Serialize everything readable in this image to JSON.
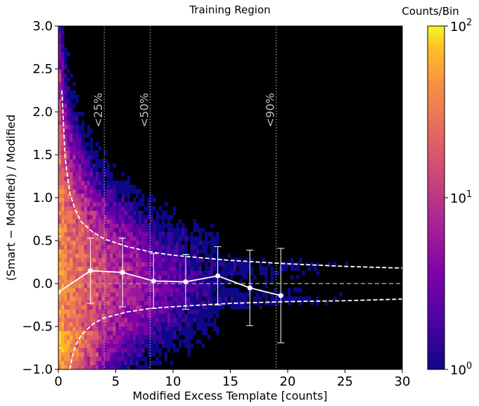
{
  "chart_data": {
    "type": "heatmap",
    "title": "Training Region",
    "xlabel": "Modified Excess Template [counts]",
    "ylabel": "(Smart − Modified) / Modified",
    "xlim": [
      0,
      30
    ],
    "ylim": [
      -1.0,
      3.0
    ],
    "x_ticks": [
      "0",
      "5",
      "10",
      "15",
      "20",
      "25",
      "30"
    ],
    "y_ticks": [
      "−1.0",
      "−0.5",
      "0.0",
      "0.5",
      "1.0",
      "1.5",
      "2.0",
      "2.5",
      "3.0"
    ],
    "background": "#000000",
    "colorbar": {
      "label": "Counts/Bin",
      "scale": "log",
      "range": [
        1,
        100
      ],
      "ticks": [
        {
          "base": "10",
          "exp": "0",
          "value": 1
        },
        {
          "base": "10",
          "exp": "1",
          "value": 10
        },
        {
          "base": "10",
          "exp": "2",
          "value": 100
        }
      ],
      "colormap": "plasma"
    },
    "percentile_lines": [
      {
        "x": 4.0,
        "label": "<25%"
      },
      {
        "x": 8.0,
        "label": "<50%"
      },
      {
        "x": 19.0,
        "label": "<90%"
      }
    ],
    "mean_points": {
      "x": [
        0.0,
        2.8,
        5.6,
        8.3,
        11.1,
        13.9,
        16.7,
        19.4
      ],
      "y": [
        -0.1,
        0.15,
        0.13,
        0.03,
        0.02,
        0.09,
        -0.05,
        -0.14
      ],
      "err": [
        0.65,
        0.38,
        0.4,
        0.32,
        0.32,
        0.34,
        0.44,
        0.55
      ]
    },
    "envelope": {
      "description_values": "dashed curves y = ± sqrt(1/x) style bounds",
      "upper": {
        "x": [
          0.3,
          0.6,
          1.0,
          1.5,
          2,
          3,
          4,
          6,
          8,
          10,
          15,
          20,
          25,
          30
        ],
        "y": [
          2.25,
          1.45,
          1.05,
          0.85,
          0.72,
          0.6,
          0.52,
          0.43,
          0.37,
          0.33,
          0.27,
          0.23,
          0.2,
          0.18
        ]
      },
      "lower": {
        "x": [
          1.0,
          1.2,
          1.5,
          2,
          3,
          4,
          6,
          8,
          10,
          15,
          20,
          25,
          30
        ],
        "y": [
          -1.0,
          -0.86,
          -0.72,
          -0.6,
          -0.47,
          -0.4,
          -0.33,
          -0.29,
          -0.27,
          -0.23,
          -0.21,
          -0.2,
          -0.18
        ]
      }
    },
    "zero_line": 0.0
  }
}
